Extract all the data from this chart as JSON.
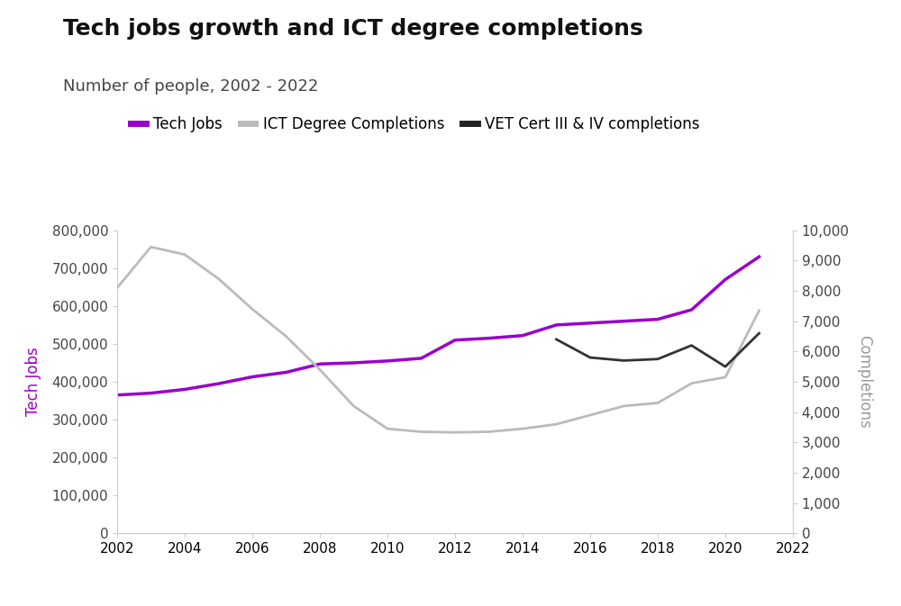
{
  "title": "Tech jobs growth and ICT degree completions",
  "subtitle": "Number of people, 2002 - 2022",
  "legend": [
    "Tech Jobs",
    "ICT Degree Completions",
    "VET Cert III & IV completions"
  ],
  "legend_colors": [
    "#9900cc",
    "#bbbbbb",
    "#222222"
  ],
  "tech_jobs_years": [
    2002,
    2003,
    2004,
    2005,
    2006,
    2007,
    2008,
    2009,
    2010,
    2011,
    2012,
    2013,
    2014,
    2015,
    2016,
    2017,
    2018,
    2019,
    2020,
    2021
  ],
  "tech_jobs_values": [
    365000,
    370000,
    380000,
    395000,
    413000,
    425000,
    447000,
    450000,
    455000,
    462000,
    510000,
    515000,
    522000,
    550000,
    555000,
    560000,
    565000,
    590000,
    670000,
    730000
  ],
  "ict_degree_years": [
    2002,
    2003,
    2004,
    2005,
    2006,
    2007,
    2008,
    2009,
    2010,
    2011,
    2012,
    2013,
    2014,
    2015,
    2016,
    2017,
    2018,
    2019,
    2020,
    2021
  ],
  "ict_degree_values": [
    8100,
    9450,
    9200,
    8400,
    7400,
    6500,
    5400,
    4200,
    3450,
    3350,
    3330,
    3350,
    3450,
    3600,
    3900,
    4200,
    4300,
    4950,
    5150,
    7350
  ],
  "vet_cert_years": [
    2015,
    2016,
    2017,
    2018,
    2019,
    2020,
    2021
  ],
  "vet_cert_values": [
    6400,
    5800,
    5700,
    5750,
    6200,
    5500,
    6600
  ],
  "left_ylim": [
    0,
    800000
  ],
  "right_ylim": [
    0,
    10000
  ],
  "left_ylabel": "Tech Jobs",
  "right_ylabel": "Completions",
  "left_ylabel_color": "#9900cc",
  "right_ylabel_color": "#999999",
  "xlim": [
    2002,
    2022
  ],
  "tech_jobs_color": "#9900cc",
  "ict_degree_color": "#bbbbbb",
  "vet_cert_color": "#333333",
  "tech_jobs_linewidth": 2.5,
  "ict_degree_linewidth": 2.0,
  "vet_cert_linewidth": 2.0,
  "background_color": "#ffffff",
  "title_fontsize": 18,
  "subtitle_fontsize": 13,
  "legend_fontsize": 12,
  "axis_tick_fontsize": 11
}
